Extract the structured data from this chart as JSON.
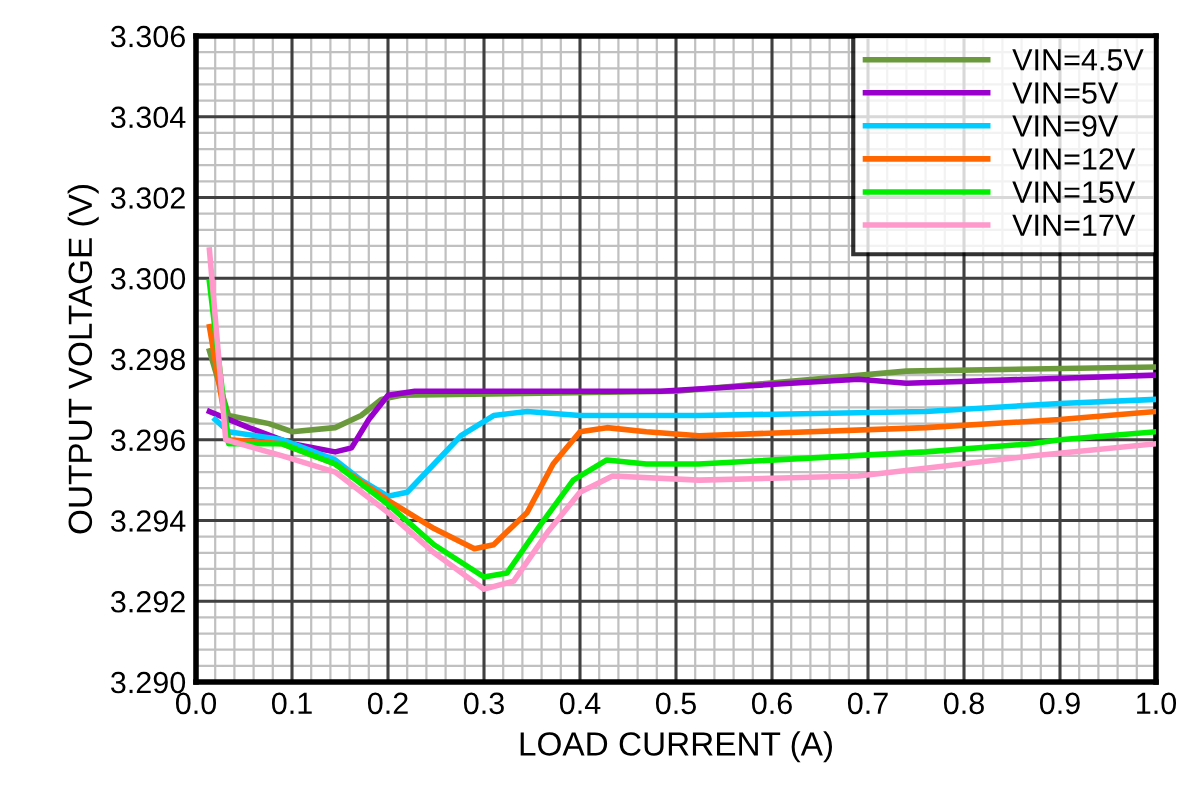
{
  "chart_data": {
    "type": "line",
    "xlabel": "LOAD CURRENT (A)",
    "ylabel": "OUTPUT VOLTAGE (V)",
    "xlim": [
      0,
      1.0
    ],
    "ylim": [
      3.29,
      3.306
    ],
    "xticks": [
      {
        "value": 0,
        "label": "0.0"
      },
      {
        "value": 0.1,
        "label": "0.1"
      },
      {
        "value": 0.2,
        "label": "0.2"
      },
      {
        "value": 0.3,
        "label": "0.3"
      },
      {
        "value": 0.4,
        "label": "0.4"
      },
      {
        "value": 0.5,
        "label": "0.5"
      },
      {
        "value": 0.6,
        "label": "0.6"
      },
      {
        "value": 0.7,
        "label": "0.7"
      },
      {
        "value": 0.8,
        "label": "0.8"
      },
      {
        "value": 0.9,
        "label": "0.9"
      },
      {
        "value": 1.0,
        "label": "1.0"
      }
    ],
    "yticks": [
      {
        "value": 3.29,
        "label": "3.290"
      },
      {
        "value": 3.292,
        "label": "3.292"
      },
      {
        "value": 3.294,
        "label": "3.294"
      },
      {
        "value": 3.296,
        "label": "3.296"
      },
      {
        "value": 3.298,
        "label": "3.298"
      },
      {
        "value": 3.3,
        "label": "3.300"
      },
      {
        "value": 3.302,
        "label": "3.302"
      },
      {
        "value": 3.304,
        "label": "3.304"
      },
      {
        "value": 3.306,
        "label": "3.306"
      }
    ],
    "grid": true,
    "legend": "top right",
    "marker": "none",
    "line_style": "solid",
    "series": [
      {
        "name": "VIN=4.5V",
        "color": "#6b9a3c",
        "x": [
          0.014,
          0.034,
          0.076,
          0.1,
          0.145,
          0.172,
          0.193,
          0.214,
          0.5,
          0.74,
          1.0
        ],
        "values": [
          3.2982,
          3.2966,
          3.2964,
          3.2962,
          3.2963,
          3.2966,
          3.297,
          3.2971,
          3.2972,
          3.2977,
          3.2978
        ]
      },
      {
        "name": "VIN=5V",
        "color": "#9900cc",
        "x": [
          0.014,
          0.055,
          0.1,
          0.145,
          0.162,
          0.18,
          0.2,
          0.228,
          0.484,
          0.69,
          0.74,
          0.87,
          1.0
        ],
        "values": [
          3.2967,
          3.2963,
          3.2959,
          3.2957,
          3.2958,
          3.2965,
          3.2971,
          3.2972,
          3.2972,
          3.2975,
          3.2974,
          3.2975,
          3.2976
        ]
      },
      {
        "name": "VIN=9V",
        "color": "#00ccff",
        "x": [
          0.02,
          0.034,
          0.09,
          0.145,
          0.172,
          0.2,
          0.22,
          0.248,
          0.276,
          0.31,
          0.345,
          0.4,
          0.524,
          0.76,
          0.9,
          1.0
        ],
        "values": [
          3.2965,
          3.2962,
          3.296,
          3.2955,
          3.295,
          3.2946,
          3.2947,
          3.2954,
          3.2961,
          3.2966,
          3.2967,
          3.2966,
          3.2966,
          3.2967,
          3.2969,
          3.297
        ]
      },
      {
        "name": "VIN=12V",
        "color": "#ff6600",
        "x": [
          0.014,
          0.034,
          0.09,
          0.145,
          0.2,
          0.248,
          0.29,
          0.31,
          0.345,
          0.372,
          0.4,
          0.428,
          0.469,
          0.524,
          0.76,
          0.9,
          1.0
        ],
        "values": [
          3.2988,
          3.296,
          3.2959,
          3.2954,
          3.2945,
          3.2938,
          3.2933,
          3.2934,
          3.2942,
          3.2954,
          3.2962,
          3.2963,
          3.2962,
          3.2961,
          3.2963,
          3.2965,
          3.2967
        ]
      },
      {
        "name": "VIN=15V",
        "color": "#00ee00",
        "x": [
          0.014,
          0.034,
          0.09,
          0.145,
          0.2,
          0.248,
          0.3,
          0.324,
          0.359,
          0.393,
          0.428,
          0.469,
          0.524,
          0.76,
          0.87,
          0.9,
          1.0
        ],
        "values": [
          3.2999,
          3.2959,
          3.2959,
          3.2954,
          3.2944,
          3.2934,
          3.2926,
          3.2927,
          3.2939,
          3.295,
          3.2955,
          3.2954,
          3.2954,
          3.2957,
          3.2959,
          3.296,
          3.2962
        ]
      },
      {
        "name": "VIN=17V",
        "color": "#ff99cc",
        "x": [
          0.014,
          0.031,
          0.09,
          0.145,
          0.2,
          0.248,
          0.3,
          0.331,
          0.366,
          0.4,
          0.434,
          0.524,
          0.69,
          0.87,
          1.0
        ],
        "values": [
          3.3007,
          3.296,
          3.2956,
          3.2952,
          3.2942,
          3.2932,
          3.2923,
          3.2925,
          3.2937,
          3.2947,
          3.2951,
          3.295,
          3.2951,
          3.2956,
          3.2959
        ]
      }
    ]
  }
}
